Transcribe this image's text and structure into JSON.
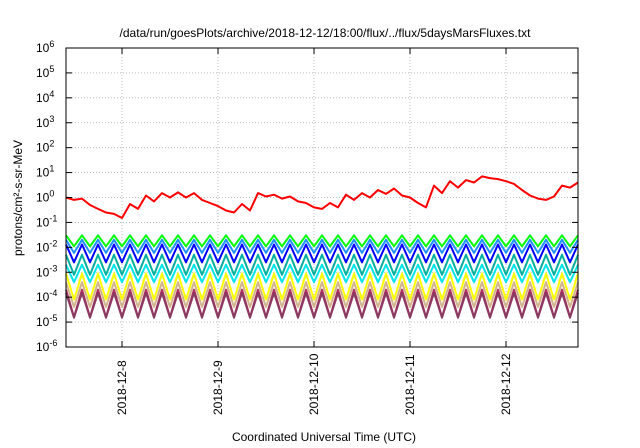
{
  "chart_data": {
    "type": "line",
    "title": "/data/run/goesPlots/archive/2018-12-12/18:00/flux/../flux/5daysMarsFluxes.txt",
    "xlabel": "Coordinated Universal Time (UTC)",
    "ylabel": "protons/cm²-s-sr-MeV",
    "y_scale": "log",
    "ylim": [
      1e-06,
      1000000.0
    ],
    "x_range": [
      "2018-12-07 10:00",
      "2018-12-12 18:00"
    ],
    "y_ticks": [
      {
        "value": 1e-06,
        "base": "10",
        "exp": "-6"
      },
      {
        "value": 1e-05,
        "base": "10",
        "exp": "-5"
      },
      {
        "value": 0.0001,
        "base": "10",
        "exp": "-4"
      },
      {
        "value": 0.001,
        "base": "10",
        "exp": "-3"
      },
      {
        "value": 0.01,
        "base": "10",
        "exp": "-2"
      },
      {
        "value": 0.1,
        "base": "10",
        "exp": "-1"
      },
      {
        "value": 1,
        "base": "10",
        "exp": "0"
      },
      {
        "value": 10,
        "base": "10",
        "exp": "1"
      },
      {
        "value": 100,
        "base": "10",
        "exp": "2"
      },
      {
        "value": 1000,
        "base": "10",
        "exp": "3"
      },
      {
        "value": 10000,
        "base": "10",
        "exp": "4"
      },
      {
        "value": 100000,
        "base": "10",
        "exp": "5"
      },
      {
        "value": 1000000,
        "base": "10",
        "exp": "6"
      }
    ],
    "x_ticks": [
      "2018-12-8",
      "2018-12-9",
      "2018-12-10",
      "2018-12-11",
      "2018-12-12"
    ],
    "grid": true,
    "series": [
      {
        "color": "#ff0000",
        "x": [
          "2018-12-07 10:00",
          "2018-12-07 12:00",
          "2018-12-07 14:00",
          "2018-12-07 16:00",
          "2018-12-07 18:00",
          "2018-12-07 20:00",
          "2018-12-07 22:00",
          "2018-12-08 00:00",
          "2018-12-08 02:00",
          "2018-12-08 04:00",
          "2018-12-08 06:00",
          "2018-12-08 08:00",
          "2018-12-08 10:00",
          "2018-12-08 12:00",
          "2018-12-08 14:00",
          "2018-12-08 16:00",
          "2018-12-08 18:00",
          "2018-12-08 20:00",
          "2018-12-08 22:00",
          "2018-12-09 00:00",
          "2018-12-09 02:00",
          "2018-12-09 04:00",
          "2018-12-09 06:00",
          "2018-12-09 08:00",
          "2018-12-09 10:00",
          "2018-12-09 12:00",
          "2018-12-09 14:00",
          "2018-12-09 16:00",
          "2018-12-09 18:00",
          "2018-12-09 20:00",
          "2018-12-09 22:00",
          "2018-12-10 00:00",
          "2018-12-10 02:00",
          "2018-12-10 04:00",
          "2018-12-10 06:00",
          "2018-12-10 08:00",
          "2018-12-10 10:00",
          "2018-12-10 12:00",
          "2018-12-10 14:00",
          "2018-12-10 16:00",
          "2018-12-10 18:00",
          "2018-12-10 20:00",
          "2018-12-10 22:00",
          "2018-12-11 00:00",
          "2018-12-11 02:00",
          "2018-12-11 04:00",
          "2018-12-11 06:00",
          "2018-12-11 08:00",
          "2018-12-11 10:00",
          "2018-12-11 12:00",
          "2018-12-11 14:00",
          "2018-12-11 16:00",
          "2018-12-11 18:00",
          "2018-12-11 20:00",
          "2018-12-11 22:00",
          "2018-12-12 00:00",
          "2018-12-12 02:00",
          "2018-12-12 04:00",
          "2018-12-12 06:00",
          "2018-12-12 08:00",
          "2018-12-12 10:00",
          "2018-12-12 12:00",
          "2018-12-12 14:00",
          "2018-12-12 16:00",
          "2018-12-12 18:00"
        ],
        "values": [
          1.0,
          0.8,
          0.9,
          0.5,
          0.35,
          0.25,
          0.22,
          0.15,
          0.55,
          0.35,
          1.2,
          0.7,
          1.5,
          1.0,
          1.6,
          1.0,
          1.5,
          0.8,
          0.6,
          0.45,
          0.3,
          0.25,
          0.55,
          0.3,
          1.5,
          1.1,
          1.3,
          0.9,
          1.1,
          0.7,
          0.6,
          0.4,
          0.35,
          0.6,
          0.4,
          1.3,
          0.8,
          1.5,
          1.0,
          2.0,
          1.4,
          2.3,
          1.2,
          1.0,
          0.6,
          0.4,
          3.0,
          1.5,
          4.5,
          2.5,
          5.0,
          4.0,
          7.0,
          6.0,
          5.5,
          4.5,
          3.5,
          2.0,
          1.2,
          0.9,
          0.8,
          1.1,
          3.0,
          2.5,
          4.0
        ]
      },
      {
        "color": "#00ff00",
        "base": 0.011,
        "peak": 0.03,
        "trend": 0.0
      },
      {
        "color": "#1e90ff",
        "base": 0.006,
        "peak": 0.02,
        "trend": 0.0
      },
      {
        "color": "#0000ff",
        "base": 0.0025,
        "peak": 0.013,
        "trend": 0.0
      },
      {
        "color": "#00b0a0",
        "base": 0.0008,
        "peak": 0.005,
        "trend": 0.0
      },
      {
        "color": "#00e5e5",
        "base": 0.0004,
        "peak": 0.002,
        "trend": 0.0
      },
      {
        "color": "#ffff00",
        "base": 8e-05,
        "peak": 0.0009,
        "trend": 0.0
      },
      {
        "color": "#d2b48c",
        "base": 4e-05,
        "peak": 0.0004,
        "trend": 0.0
      },
      {
        "color": "#b03060",
        "base": 1.6e-05,
        "peak": 0.0002,
        "trend": 0.0
      },
      {
        "color": "#8b3a62",
        "base": 1.5e-05,
        "peak": 0.00015,
        "trend": 0.0
      }
    ]
  }
}
